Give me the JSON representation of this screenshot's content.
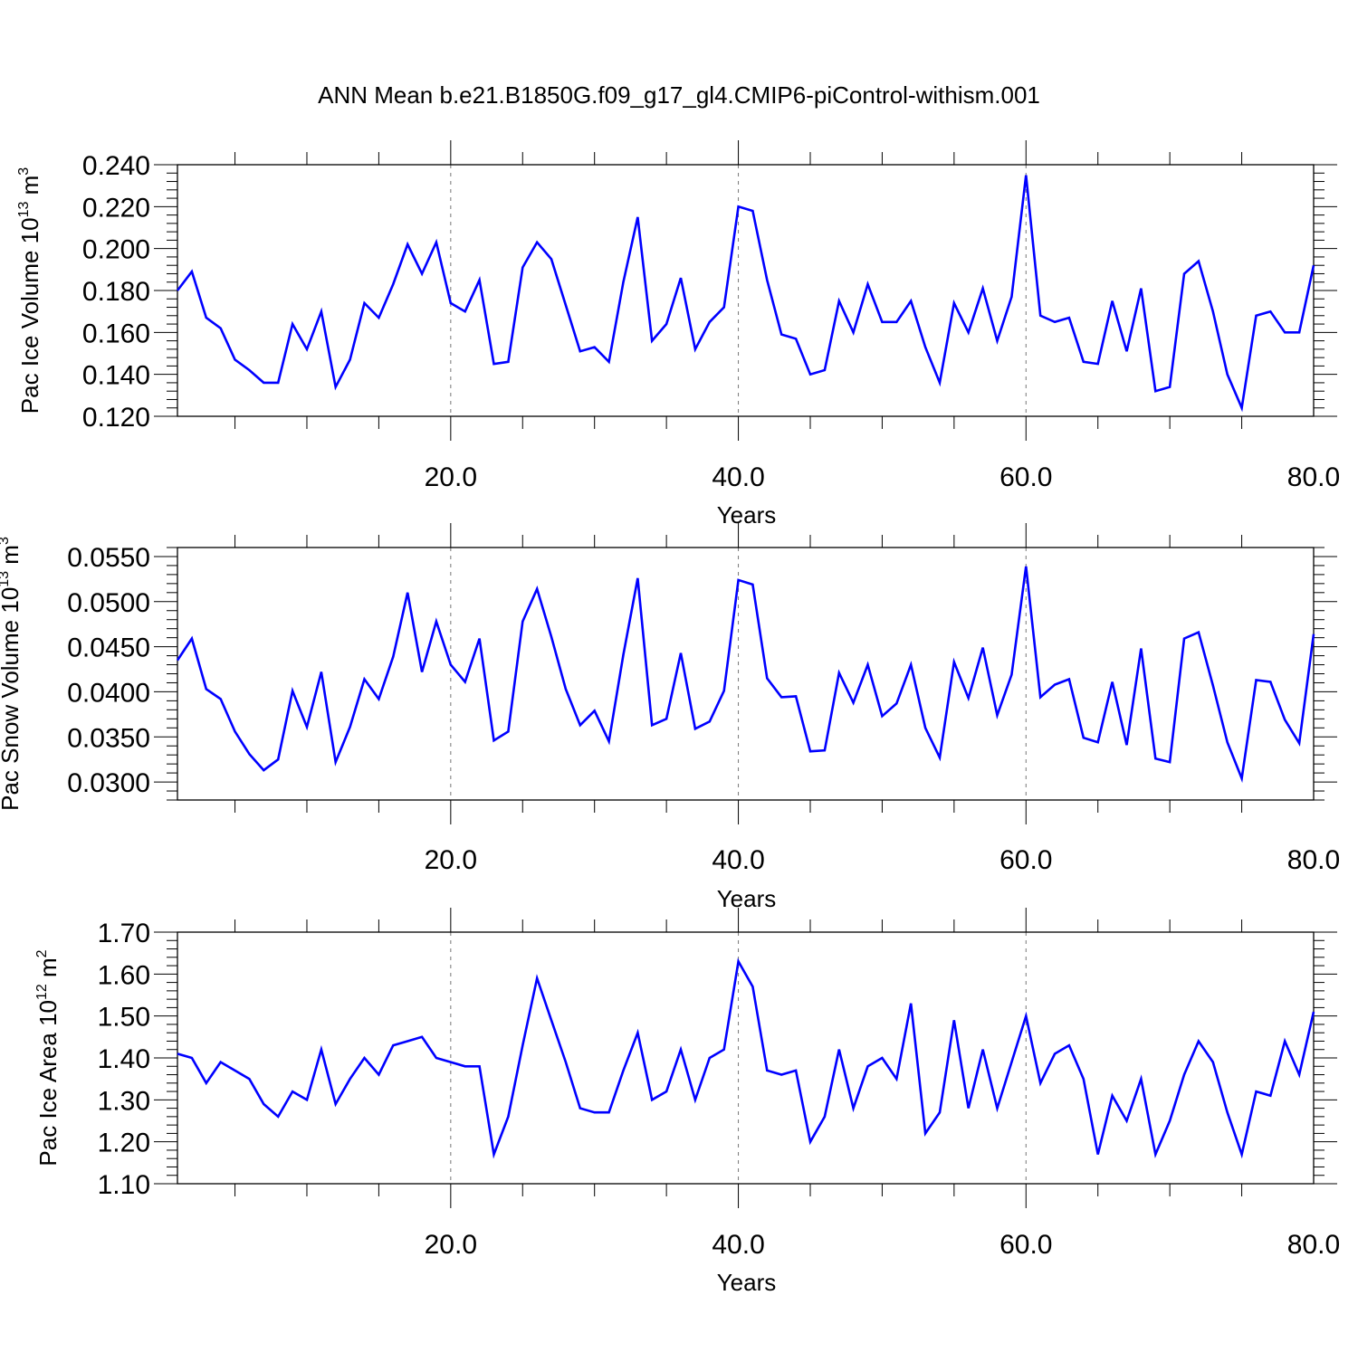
{
  "title": "ANN Mean b.e21.B1850G.f09_g17_gl4.CMIP6-piControl-withism.001",
  "chart_data": [
    {
      "type": "line",
      "ylabel": "Pac Ice Volume 10",
      "ylabel_exp": "13",
      "ylabel_unit": " m",
      "ylabel_unit_exp": "3",
      "xlabel": "Years",
      "xlim": [
        1,
        80
      ],
      "ylim": [
        0.12,
        0.24
      ],
      "yticks": [
        0.12,
        0.14,
        0.16,
        0.18,
        0.2,
        0.22,
        0.24
      ],
      "yticklabels": [
        "0.120",
        "0.140",
        "0.160",
        "0.180",
        "0.200",
        "0.220",
        "0.240"
      ],
      "xticks": [
        20,
        40,
        60,
        80
      ],
      "xticklabels": [
        "20.0",
        "40.0",
        "60.0",
        "80.0"
      ],
      "line_color": "#0000ff",
      "x": [
        1,
        2,
        3,
        4,
        5,
        6,
        7,
        8,
        9,
        10,
        11,
        12,
        13,
        14,
        15,
        16,
        17,
        18,
        19,
        20,
        21,
        22,
        23,
        24,
        25,
        26,
        27,
        28,
        29,
        30,
        31,
        32,
        33,
        34,
        35,
        36,
        37,
        38,
        39,
        40,
        41,
        42,
        43,
        44,
        45,
        46,
        47,
        48,
        49,
        50,
        51,
        52,
        53,
        54,
        55,
        56,
        57,
        58,
        59,
        60,
        61,
        62,
        63,
        64,
        65,
        66,
        67,
        68,
        69,
        70,
        71,
        72,
        73,
        74,
        75,
        76,
        77,
        78,
        79,
        80
      ],
      "values": [
        0.18,
        0.189,
        0.167,
        0.162,
        0.147,
        0.142,
        0.136,
        0.136,
        0.164,
        0.152,
        0.17,
        0.134,
        0.147,
        0.174,
        0.167,
        0.183,
        0.202,
        0.188,
        0.203,
        0.174,
        0.17,
        0.185,
        0.145,
        0.146,
        0.191,
        0.203,
        0.195,
        0.173,
        0.151,
        0.153,
        0.146,
        0.184,
        0.215,
        0.156,
        0.164,
        0.186,
        0.152,
        0.165,
        0.172,
        0.22,
        0.218,
        0.185,
        0.159,
        0.157,
        0.14,
        0.142,
        0.175,
        0.16,
        0.183,
        0.165,
        0.165,
        0.175,
        0.153,
        0.136,
        0.174,
        0.16,
        0.181,
        0.156,
        0.177,
        0.235,
        0.168,
        0.165,
        0.167,
        0.146,
        0.145,
        0.175,
        0.151,
        0.181,
        0.132,
        0.134,
        0.188,
        0.194,
        0.17,
        0.14,
        0.124,
        0.168,
        0.17,
        0.16,
        0.16,
        0.192
      ]
    },
    {
      "type": "line",
      "ylabel": "Pac Snow Volume 10",
      "ylabel_exp": "13",
      "ylabel_unit": " m",
      "ylabel_unit_exp": "3",
      "xlabel": "Years",
      "xlim": [
        1,
        80
      ],
      "ylim": [
        0.028,
        0.056
      ],
      "yticks": [
        0.03,
        0.035,
        0.04,
        0.045,
        0.05,
        0.055
      ],
      "yticklabels": [
        "0.0300",
        "0.0350",
        "0.0400",
        "0.0450",
        "0.0500",
        "0.0550"
      ],
      "xticks": [
        20,
        40,
        60,
        80
      ],
      "xticklabels": [
        "20.0",
        "40.0",
        "60.0",
        "80.0"
      ],
      "line_color": "#0000ff",
      "x": [
        1,
        2,
        3,
        4,
        5,
        6,
        7,
        8,
        9,
        10,
        11,
        12,
        13,
        14,
        15,
        16,
        17,
        18,
        19,
        20,
        21,
        22,
        23,
        24,
        25,
        26,
        27,
        28,
        29,
        30,
        31,
        32,
        33,
        34,
        35,
        36,
        37,
        38,
        39,
        40,
        41,
        42,
        43,
        44,
        45,
        46,
        47,
        48,
        49,
        50,
        51,
        52,
        53,
        54,
        55,
        56,
        57,
        58,
        59,
        60,
        61,
        62,
        63,
        64,
        65,
        66,
        67,
        68,
        69,
        70,
        71,
        72,
        73,
        74,
        75,
        76,
        77,
        78,
        79,
        80
      ],
      "values": [
        0.0435,
        0.0459,
        0.0403,
        0.0392,
        0.0356,
        0.0331,
        0.0313,
        0.0325,
        0.0401,
        0.0361,
        0.0422,
        0.0322,
        0.0361,
        0.0414,
        0.0392,
        0.0439,
        0.051,
        0.0422,
        0.0478,
        0.043,
        0.0411,
        0.0459,
        0.0346,
        0.0356,
        0.0478,
        0.0514,
        0.0461,
        0.0403,
        0.0363,
        0.0379,
        0.0345,
        0.0441,
        0.0526,
        0.0363,
        0.037,
        0.0443,
        0.0359,
        0.0367,
        0.0401,
        0.0524,
        0.0519,
        0.0415,
        0.0394,
        0.0395,
        0.0334,
        0.0335,
        0.0421,
        0.0388,
        0.043,
        0.0373,
        0.0387,
        0.043,
        0.036,
        0.0327,
        0.0433,
        0.0393,
        0.0449,
        0.0374,
        0.0419,
        0.0539,
        0.0394,
        0.0408,
        0.0414,
        0.0349,
        0.0344,
        0.0411,
        0.0341,
        0.0448,
        0.0326,
        0.0322,
        0.0459,
        0.0466,
        0.0407,
        0.0344,
        0.0304,
        0.0413,
        0.0411,
        0.0369,
        0.0343,
        0.0464
      ]
    },
    {
      "type": "line",
      "ylabel": "Pac Ice Area 10",
      "ylabel_exp": "12",
      "ylabel_unit": " m",
      "ylabel_unit_exp": "2",
      "xlabel": "Years",
      "xlim": [
        1,
        80
      ],
      "ylim": [
        1.1,
        1.7
      ],
      "yticks": [
        1.1,
        1.2,
        1.3,
        1.4,
        1.5,
        1.6,
        1.7
      ],
      "yticklabels": [
        "1.10",
        "1.20",
        "1.30",
        "1.40",
        "1.50",
        "1.60",
        "1.70"
      ],
      "xticks": [
        20,
        40,
        60,
        80
      ],
      "xticklabels": [
        "20.0",
        "40.0",
        "60.0",
        "80.0"
      ],
      "line_color": "#0000ff",
      "x": [
        1,
        2,
        3,
        4,
        5,
        6,
        7,
        8,
        9,
        10,
        11,
        12,
        13,
        14,
        15,
        16,
        17,
        18,
        19,
        20,
        21,
        22,
        23,
        24,
        25,
        26,
        27,
        28,
        29,
        30,
        31,
        32,
        33,
        34,
        35,
        36,
        37,
        38,
        39,
        40,
        41,
        42,
        43,
        44,
        45,
        46,
        47,
        48,
        49,
        50,
        51,
        52,
        53,
        54,
        55,
        56,
        57,
        58,
        59,
        60,
        61,
        62,
        63,
        64,
        65,
        66,
        67,
        68,
        69,
        70,
        71,
        72,
        73,
        74,
        75,
        76,
        77,
        78,
        79,
        80
      ],
      "values": [
        1.41,
        1.4,
        1.34,
        1.39,
        1.37,
        1.35,
        1.29,
        1.26,
        1.32,
        1.3,
        1.42,
        1.29,
        1.35,
        1.4,
        1.36,
        1.43,
        1.44,
        1.45,
        1.4,
        1.39,
        1.38,
        1.38,
        1.17,
        1.26,
        1.43,
        1.59,
        1.49,
        1.39,
        1.28,
        1.27,
        1.27,
        1.37,
        1.46,
        1.3,
        1.32,
        1.42,
        1.3,
        1.4,
        1.42,
        1.63,
        1.57,
        1.37,
        1.36,
        1.37,
        1.2,
        1.26,
        1.42,
        1.28,
        1.38,
        1.4,
        1.35,
        1.53,
        1.22,
        1.27,
        1.49,
        1.28,
        1.42,
        1.28,
        1.39,
        1.5,
        1.34,
        1.41,
        1.43,
        1.35,
        1.17,
        1.31,
        1.25,
        1.35,
        1.17,
        1.25,
        1.36,
        1.44,
        1.39,
        1.27,
        1.17,
        1.32,
        1.31,
        1.44,
        1.36,
        1.51
      ]
    }
  ]
}
